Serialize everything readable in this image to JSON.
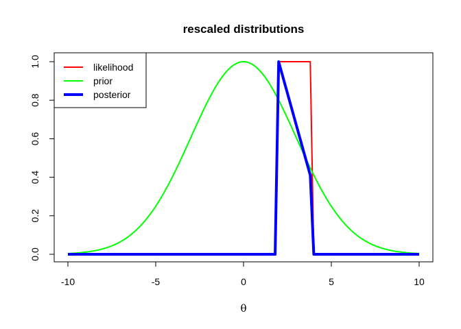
{
  "chart_data": {
    "type": "line",
    "title": "rescaled distributions",
    "xlabel": "θ",
    "ylabel": "",
    "xlim": [
      -10,
      10
    ],
    "ylim": [
      0,
      1
    ],
    "x_ticks": [
      -10,
      -5,
      0,
      5,
      10
    ],
    "y_ticks": [
      0.0,
      0.2,
      0.4,
      0.6,
      0.8,
      1.0
    ],
    "x_tick_labels": [
      "-10",
      "-5",
      "0",
      "5",
      "10"
    ],
    "y_tick_labels": [
      "0.0",
      "0.2",
      "0.4",
      "0.6",
      "0.8",
      "1.0"
    ],
    "grid": false,
    "legend_position": "top-left",
    "series": [
      {
        "name": "likelihood",
        "color": "#ff0000",
        "x": [
          -10,
          1.8,
          2.0,
          3.8,
          4.0,
          10
        ],
        "y": [
          0,
          0,
          1,
          1,
          0,
          0
        ]
      },
      {
        "name": "prior",
        "color": "#00ff00",
        "x": [
          -10,
          -9,
          -8,
          -7,
          -6,
          -5,
          -4,
          -3,
          -2,
          -1,
          0,
          1,
          2,
          3,
          4,
          5,
          6,
          7,
          8,
          9,
          10
        ],
        "y": [
          0.0004,
          0.0018,
          0.0067,
          0.0219,
          0.0611,
          0.1448,
          0.2917,
          0.5,
          0.7304,
          0.9064,
          1.0,
          0.9064,
          0.7304,
          0.5,
          0.2917,
          0.1448,
          0.0611,
          0.0219,
          0.0067,
          0.0018,
          0.0004
        ]
      },
      {
        "name": "posterior",
        "color": "#0000ff",
        "x": [
          -10,
          1.8,
          2.0,
          3.8,
          4.0,
          10
        ],
        "y": [
          0,
          0,
          1.0,
          0.41,
          0,
          0
        ]
      }
    ]
  }
}
